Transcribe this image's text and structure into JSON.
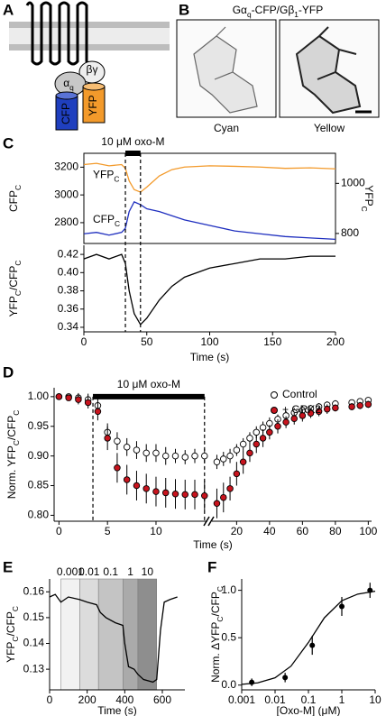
{
  "panels": [
    "A",
    "B",
    "C",
    "D",
    "E",
    "F"
  ],
  "diagram": {
    "labels": [
      [
        "α",
        "q"
      ],
      "βγ",
      "CFP",
      "YFP"
    ]
  },
  "images": {
    "title": [
      "Gα",
      "q",
      "-CFP/Gβ",
      "1",
      "-YFP"
    ],
    "captions": [
      "Cyan",
      "Yellow"
    ]
  },
  "chart_data": [
    {
      "type": "dual-line",
      "x": [
        0,
        10,
        20,
        30,
        33,
        36,
        40,
        45,
        50,
        60,
        70,
        80,
        100,
        120,
        140,
        160,
        180,
        200
      ],
      "xlim": [
        0,
        200
      ],
      "ylim": [
        2650,
        3300
      ],
      "yticks": [
        2800,
        3000,
        3200
      ],
      "y2lim": [
        760,
        1120
      ],
      "y2ticks": [
        800,
        1000
      ],
      "ylabel": [
        "CFP",
        "C"
      ],
      "y2label": [
        "YFP",
        "C"
      ],
      "annotation": {
        "text": "10 μM oxo-M",
        "start": 33,
        "end": 45
      },
      "series": [
        {
          "name": [
            "CFP",
            "C"
          ],
          "color": "#1f2fbf",
          "values": [
            2720,
            2730,
            2710,
            2730,
            2760,
            2880,
            2950,
            2930,
            2900,
            2880,
            2850,
            2820,
            2780,
            2740,
            2720,
            2700,
            2690,
            2680
          ]
        },
        {
          "name": [
            "YFP",
            "C"
          ],
          "color": "#f39a2b",
          "axis": "y2",
          "values": [
            1075,
            1080,
            1070,
            1075,
            1060,
            1010,
            975,
            965,
            985,
            1030,
            1055,
            1065,
            1070,
            1068,
            1065,
            1060,
            1062,
            1058
          ]
        }
      ]
    },
    {
      "type": "line",
      "x": [
        0,
        10,
        20,
        30,
        33,
        36,
        40,
        45,
        50,
        60,
        70,
        80,
        100,
        120,
        140,
        160,
        180,
        200
      ],
      "xlim": [
        0,
        200
      ],
      "xticks": [
        0,
        50,
        100,
        150,
        200
      ],
      "xlabel": "Time (s)",
      "ylim": [
        0.335,
        0.43
      ],
      "yticks": [
        0.34,
        0.36,
        0.38,
        {
          "value": 0.4,
          "label": "0.40"
        },
        0.42
      ],
      "ylabel": [
        "YFP",
        "C",
        "/CFP",
        "C"
      ],
      "series": [
        {
          "color": "#000000",
          "values": [
            0.415,
            0.42,
            0.415,
            0.42,
            0.41,
            0.38,
            0.355,
            0.343,
            0.35,
            0.37,
            0.385,
            0.395,
            0.405,
            0.41,
            0.415,
            0.415,
            0.418,
            0.418
          ]
        }
      ]
    },
    {
      "type": "errorbar",
      "xaxes": [
        {
          "xlim": [
            -0.5,
            15.3
          ],
          "xticks": [
            0,
            5,
            10
          ]
        },
        {
          "xlim": [
            5,
            102
          ],
          "xticks": [
            20,
            40,
            60,
            80,
            100
          ]
        }
      ],
      "x": [
        [
          0,
          1,
          2,
          3,
          4,
          5,
          6,
          7,
          8,
          9,
          10,
          11,
          12,
          13,
          14,
          15
        ],
        [
          8,
          12,
          16,
          20,
          24,
          28,
          32,
          36,
          40,
          45,
          50,
          55,
          60,
          65,
          70,
          75,
          80,
          90,
          95,
          100
        ]
      ],
      "xlabel": "Time (s)",
      "ylim": [
        0.79,
        1.015
      ],
      "yticks": [
        {
          "value": 0.8,
          "label": "0.80"
        },
        0.85,
        {
          "value": 0.9,
          "label": "0.90"
        },
        0.95,
        {
          "value": 1,
          "label": "1.00"
        }
      ],
      "ylabel": [
        "Norm. YFP",
        "C",
        "/CFP",
        "C"
      ],
      "legend": "top-right",
      "annotation": {
        "text": "10 μM oxo-M",
        "start": 3.5,
        "end": 15
      },
      "series": [
        {
          "name": "Control",
          "color": "#ffffff",
          "values": [
            [
              1.0,
              1.0,
              0.998,
              0.995,
              0.985,
              0.94,
              0.925,
              0.915,
              0.91,
              0.905,
              0.905,
              0.9,
              0.9,
              0.898,
              0.9,
              0.9
            ],
            [
              0.89,
              0.895,
              0.9,
              0.91,
              0.92,
              0.93,
              0.94,
              0.948,
              0.955,
              0.962,
              0.968,
              0.973,
              0.977,
              0.98,
              0.983,
              0.986,
              0.988,
              0.99,
              0.992,
              0.994
            ]
          ],
          "errors": [
            [
              0.005,
              0.005,
              0.008,
              0.01,
              0.015,
              0.015,
              0.015,
              0.015,
              0.015,
              0.015,
              0.015,
              0.015,
              0.012,
              0.012,
              0.012,
              0.012
            ],
            [
              0.012,
              0.012,
              0.012,
              0.01,
              0.01,
              0.01,
              0.01,
              0.01,
              0.01,
              0.008,
              0.008,
              0.008,
              0.008,
              0.006,
              0.006,
              0.006,
              0.006,
              0.005,
              0.005,
              0.005
            ]
          ]
        },
        {
          "name": "+ GRK2",
          "color": "#c8141e",
          "values": [
            [
              1.0,
              0.998,
              0.995,
              0.99,
              0.975,
              0.93,
              0.88,
              0.86,
              0.85,
              0.845,
              0.84,
              0.838,
              0.836,
              0.835,
              0.835,
              0.833
            ],
            [
              0.82,
              0.83,
              0.845,
              0.87,
              0.89,
              0.905,
              0.92,
              0.93,
              0.94,
              0.95,
              0.957,
              0.963,
              0.968,
              0.972,
              0.975,
              0.979,
              0.981,
              0.983,
              0.985,
              0.987
            ]
          ],
          "errors": [
            [
              0.005,
              0.005,
              0.008,
              0.01,
              0.015,
              0.02,
              0.025,
              0.025,
              0.025,
              0.025,
              0.025,
              0.025,
              0.025,
              0.025,
              0.025,
              0.025
            ],
            [
              0.025,
              0.025,
              0.02,
              0.02,
              0.02,
              0.015,
              0.015,
              0.015,
              0.012,
              0.012,
              0.01,
              0.01,
              0.01,
              0.008,
              0.008,
              0.008,
              0.006,
              0.006,
              0.006,
              0.006
            ]
          ]
        }
      ]
    },
    {
      "type": "line",
      "x": [
        0,
        30,
        60,
        100,
        160,
        200,
        250,
        270,
        300,
        350,
        390,
        400,
        420,
        450,
        470,
        500,
        550,
        570,
        590,
        610,
        640,
        680
      ],
      "xlim": [
        0,
        720
      ],
      "xticks": [
        0,
        200,
        400,
        600
      ],
      "xlabel": "Time (s)",
      "ylim": [
        0.122,
        0.165
      ],
      "yticks": [
        0.13,
        0.14,
        0.15,
        0.16
      ],
      "ylabel": [
        "YFP",
        "C",
        "/CFP",
        "C"
      ],
      "regions": [
        {
          "label": "0.001",
          "start": 60,
          "end": 160,
          "color": "#f2f2f2"
        },
        {
          "label": "0.01",
          "start": 160,
          "end": 260,
          "color": "#dcdcdc"
        },
        {
          "label": "0.1",
          "start": 260,
          "end": 390,
          "color": "#c4c4c4"
        },
        {
          "label": "1",
          "start": 390,
          "end": 470,
          "color": "#aaaaaa"
        },
        {
          "label": "10",
          "start": 470,
          "end": 570,
          "color": "#8e8e8e"
        }
      ],
      "series": [
        {
          "color": "#000000",
          "values": [
            0.158,
            0.159,
            0.156,
            0.158,
            0.157,
            0.156,
            0.155,
            0.152,
            0.15,
            0.148,
            0.147,
            0.14,
            0.131,
            0.13,
            0.128,
            0.126,
            0.125,
            0.126,
            0.145,
            0.156,
            0.157,
            0.158
          ]
        }
      ]
    },
    {
      "type": "errorbar-log",
      "logx": true,
      "x": [
        0.002,
        0.02,
        0.13,
        1,
        7
      ],
      "xlim": [
        0.001,
        10
      ],
      "xticks": [
        0.001,
        0.01,
        0.1,
        1,
        10
      ],
      "xlabel": "[Oxo-M] (μM)",
      "ylim": [
        -0.05,
        1.12
      ],
      "yticks": [
        {
          "value": 0,
          "label": "0.0"
        },
        0.5,
        {
          "value": 1,
          "label": "1.0"
        }
      ],
      "ylabel": [
        "Norm. ΔYFP",
        "C",
        "/CFP",
        "C"
      ],
      "series": [
        {
          "color": "#000000",
          "values": [
            0.03,
            0.08,
            0.42,
            0.83,
            1.0
          ],
          "errors": [
            0.04,
            0.05,
            0.1,
            0.1,
            0.08
          ]
        }
      ],
      "fit": {
        "x": [
          0.001,
          0.003,
          0.01,
          0.03,
          0.1,
          0.3,
          1,
          3,
          10
        ],
        "values": [
          0.008,
          0.024,
          0.077,
          0.2,
          0.45,
          0.71,
          0.89,
          0.96,
          0.99
        ]
      }
    }
  ]
}
